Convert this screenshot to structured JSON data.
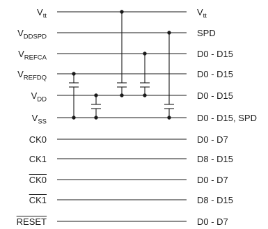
{
  "diagram": {
    "rows": [
      {
        "left": "V",
        "left_sub": "tt",
        "right": "V",
        "right_sub": "tt"
      },
      {
        "left": "V",
        "left_sub": "DDSPD",
        "right": "SPD"
      },
      {
        "left": "V",
        "left_sub": "REFCA",
        "right": "D0 - D15"
      },
      {
        "left": "V",
        "left_sub": "REFDQ",
        "right": "D0 - D15"
      },
      {
        "left": "V",
        "left_sub": "DD",
        "right": "D0 - D15"
      },
      {
        "left": "V",
        "left_sub": "SS",
        "right": "D0 - D15, SPD"
      },
      {
        "left": "CK0",
        "right": "D0 - D7"
      },
      {
        "left": "CK1",
        "right": "D8 - D15"
      },
      {
        "left": "CK0",
        "left_overline": true,
        "right": "D0 - D7"
      },
      {
        "left": "CK1",
        "left_overline": true,
        "right": "D8 - D15"
      },
      {
        "left": "RESET",
        "left_overline": true,
        "right": "D0 - D7"
      }
    ]
  }
}
